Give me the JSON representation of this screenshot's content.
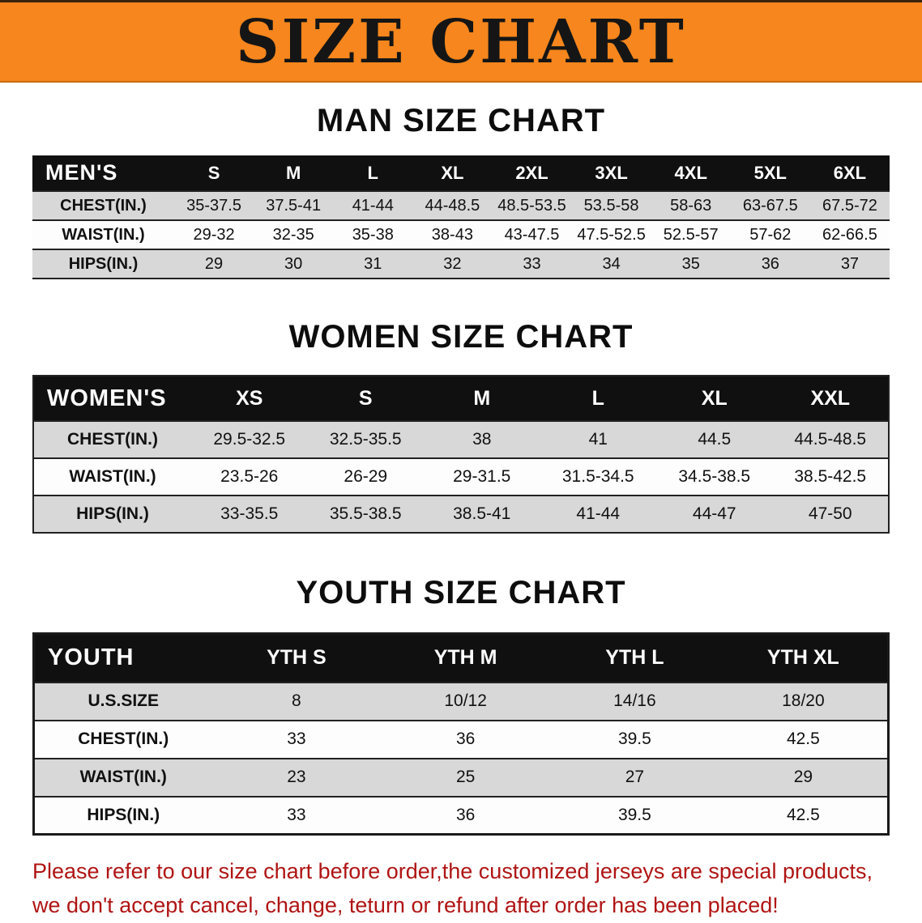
{
  "banner": {
    "title": "SIZE CHART",
    "bg_color": "#f6861d"
  },
  "men": {
    "heading": "MAN SIZE CHART",
    "table": {
      "header": [
        "MEN'S",
        "S",
        "M",
        "L",
        "XL",
        "2XL",
        "3XL",
        "4XL",
        "5XL",
        "6XL"
      ],
      "rows": [
        [
          "CHEST(IN.)",
          "35-37.5",
          "37.5-41",
          "41-44",
          "44-48.5",
          "48.5-53.5",
          "53.5-58",
          "58-63",
          "63-67.5",
          "67.5-72"
        ],
        [
          "WAIST(IN.)",
          "29-32",
          "32-35",
          "35-38",
          "38-43",
          "43-47.5",
          "47.5-52.5",
          "52.5-57",
          "57-62",
          "62-66.5"
        ],
        [
          "HIPS(IN.)",
          "29",
          "30",
          "31",
          "32",
          "33",
          "34",
          "35",
          "36",
          "37"
        ]
      ]
    }
  },
  "women": {
    "heading": "WOMEN SIZE CHART",
    "table": {
      "header": [
        "WOMEN'S",
        "XS",
        "S",
        "M",
        "L",
        "XL",
        "XXL"
      ],
      "rows": [
        [
          "CHEST(IN.)",
          "29.5-32.5",
          "32.5-35.5",
          "38",
          "41",
          "44.5",
          "44.5-48.5"
        ],
        [
          "WAIST(IN.)",
          "23.5-26",
          "26-29",
          "29-31.5",
          "31.5-34.5",
          "34.5-38.5",
          "38.5-42.5"
        ],
        [
          "HIPS(IN.)",
          "33-35.5",
          "35.5-38.5",
          "38.5-41",
          "41-44",
          "44-47",
          "47-50"
        ]
      ]
    }
  },
  "youth": {
    "heading": "YOUTH SIZE CHART",
    "table": {
      "header": [
        "YOUTH",
        "YTH S",
        "YTH M",
        "YTH L",
        "YTH XL"
      ],
      "rows": [
        [
          "U.S.SIZE",
          "8",
          "10/12",
          "14/16",
          "18/20"
        ],
        [
          "CHEST(IN.)",
          "33",
          "36",
          "39.5",
          "42.5"
        ],
        [
          "WAIST(IN.)",
          "23",
          "25",
          "27",
          "29"
        ],
        [
          "HIPS(IN.)",
          "33",
          "36",
          "39.5",
          "42.5"
        ]
      ]
    }
  },
  "disclaimer": {
    "color": "#b01414",
    "line1": "Please refer to our size chart before order,the customized jerseys are special products,",
    "line2": "we don't accept cancel, change, teturn or refund after order has been placed!"
  }
}
